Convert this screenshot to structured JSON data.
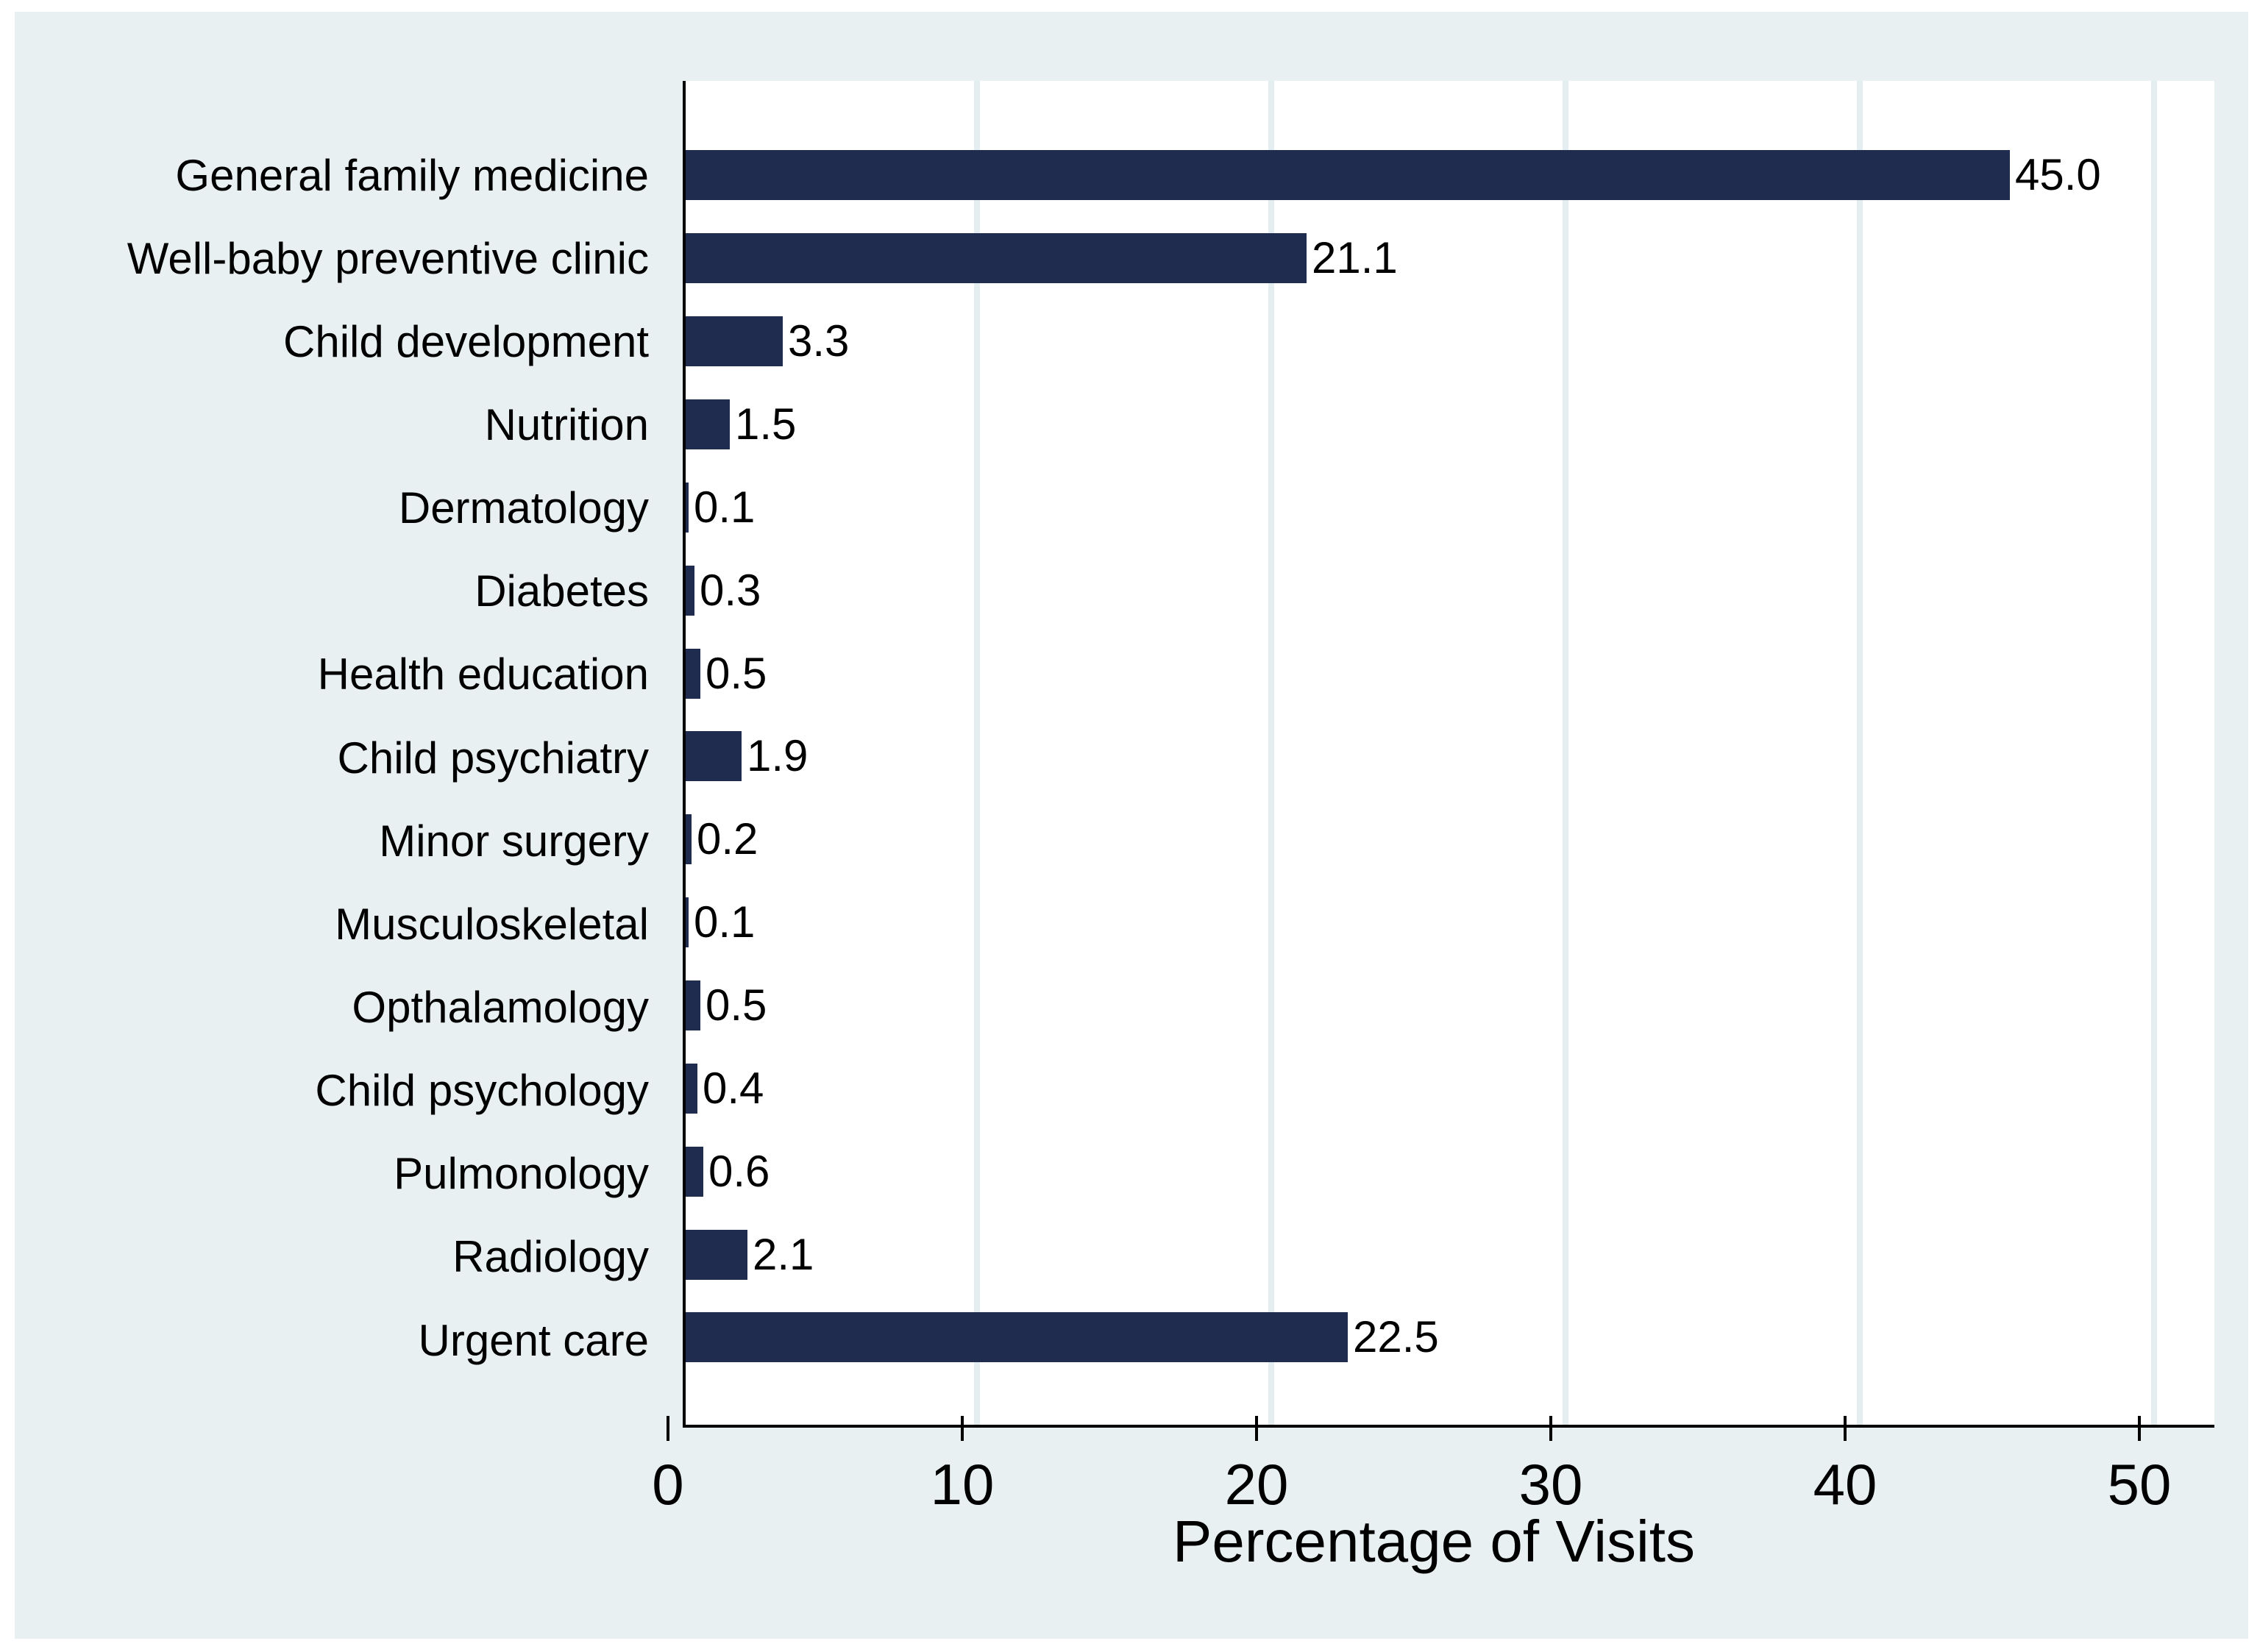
{
  "chart_data": {
    "type": "bar",
    "orientation": "horizontal",
    "title": "",
    "xlabel": "Percentage of Visits",
    "ylabel": "",
    "categories": [
      "General family medicine",
      "Well-baby preventive clinic",
      "Child development",
      "Nutrition",
      "Dermatology",
      "Diabetes",
      "Health education",
      "Child psychiatry",
      "Minor surgery",
      "Musculoskeletal",
      "Opthalamology",
      "Child psychology",
      "Pulmonology",
      "Radiology",
      "Urgent care"
    ],
    "values": [
      45.0,
      21.1,
      3.3,
      1.5,
      0.1,
      0.3,
      0.5,
      1.9,
      0.2,
      0.1,
      0.5,
      0.4,
      0.6,
      2.1,
      22.5
    ],
    "value_labels": [
      "45.0",
      "21.1",
      "3.3",
      "1.5",
      "0.1",
      "0.3",
      "0.5",
      "1.9",
      "0.2",
      "0.1",
      "0.5",
      "0.4",
      "0.6",
      "2.1",
      "22.5"
    ],
    "x_ticks": [
      0,
      10,
      20,
      30,
      40,
      50
    ],
    "xlim": [
      0,
      52.1
    ],
    "grid": true,
    "legend": "none",
    "bar_color": "#1f2c50",
    "gridline_color": "#e4edf0",
    "graph_region_color": "#e9f0f2",
    "plot_region_color": "#ffffff",
    "text_color": "#000000"
  }
}
